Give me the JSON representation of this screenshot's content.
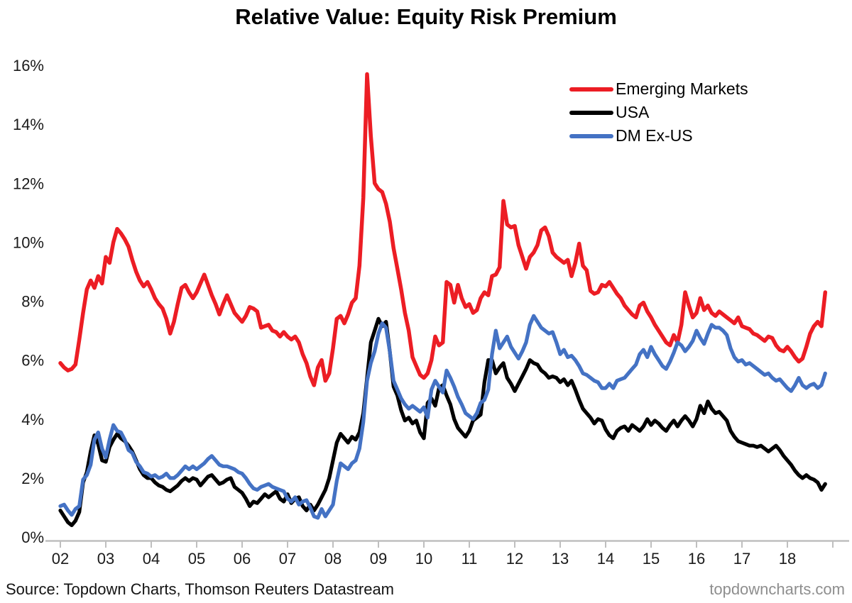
{
  "header": {
    "title": "Relative Value: Equity Risk Premium"
  },
  "footer": {
    "source": "Source: Topdown Charts, Thomson Reuters Datastream",
    "watermark": "topdowncharts.com"
  },
  "colors": {
    "emerging_markets": "#ec1d24",
    "usa": "#000000",
    "dm_ex_us": "#4472c4",
    "axis_line": "#bfbfbf",
    "tick_text": "#1a1a1a"
  },
  "chart_data": {
    "type": "line",
    "title": "Relative Value: Equity Risk Premium",
    "xlabel": "",
    "ylabel": "",
    "x_start_year": 2002,
    "x_step_months": 1,
    "x_end": "2018-11",
    "xlim": [
      2001.66,
      2019.35
    ],
    "ylim": [
      0,
      16
    ],
    "grid": false,
    "legend_position": "top-right-inside",
    "y_ticks": [
      {
        "value": 0,
        "label": "0%"
      },
      {
        "value": 2,
        "label": "2%"
      },
      {
        "value": 4,
        "label": "4%"
      },
      {
        "value": 6,
        "label": "6%"
      },
      {
        "value": 8,
        "label": "8%"
      },
      {
        "value": 10,
        "label": "10%"
      },
      {
        "value": 12,
        "label": "12%"
      },
      {
        "value": 14,
        "label": "14%"
      },
      {
        "value": 16,
        "label": "16%"
      }
    ],
    "x_ticks": [
      {
        "year": 2002,
        "label": "02"
      },
      {
        "year": 2003,
        "label": "03"
      },
      {
        "year": 2004,
        "label": "04"
      },
      {
        "year": 2005,
        "label": "05"
      },
      {
        "year": 2006,
        "label": "06"
      },
      {
        "year": 2007,
        "label": "07"
      },
      {
        "year": 2008,
        "label": "08"
      },
      {
        "year": 2009,
        "label": "09"
      },
      {
        "year": 2010,
        "label": "10"
      },
      {
        "year": 2011,
        "label": "11"
      },
      {
        "year": 2012,
        "label": "12"
      },
      {
        "year": 2013,
        "label": "13"
      },
      {
        "year": 2014,
        "label": "14"
      },
      {
        "year": 2015,
        "label": "15"
      },
      {
        "year": 2016,
        "label": "16"
      },
      {
        "year": 2017,
        "label": "17"
      },
      {
        "year": 2018,
        "label": "18"
      }
    ],
    "series": [
      {
        "name": "Emerging Markets",
        "color": "#ec1d24",
        "stroke_width": 5.5,
        "values": [
          5.9,
          5.75,
          5.65,
          5.7,
          5.85,
          6.7,
          7.6,
          8.4,
          8.7,
          8.45,
          8.85,
          8.6,
          9.5,
          9.3,
          10.0,
          10.45,
          10.3,
          10.1,
          9.85,
          9.4,
          9.0,
          8.7,
          8.5,
          8.65,
          8.4,
          8.1,
          7.9,
          7.75,
          7.4,
          6.9,
          7.3,
          7.9,
          8.45,
          8.55,
          8.3,
          8.1,
          8.3,
          8.6,
          8.9,
          8.55,
          8.2,
          7.9,
          7.55,
          7.9,
          8.2,
          7.9,
          7.6,
          7.45,
          7.3,
          7.5,
          7.8,
          7.75,
          7.65,
          7.1,
          7.15,
          7.2,
          7.0,
          6.95,
          6.8,
          6.95,
          6.8,
          6.7,
          6.8,
          6.6,
          6.2,
          5.9,
          5.45,
          5.15,
          5.75,
          6.0,
          5.3,
          5.55,
          6.4,
          7.4,
          7.5,
          7.25,
          7.55,
          7.95,
          8.1,
          9.2,
          11.5,
          15.7,
          13.6,
          12.0,
          11.8,
          11.7,
          11.3,
          10.7,
          9.8,
          9.1,
          8.4,
          7.6,
          7.0,
          6.1,
          5.8,
          5.5,
          5.4,
          5.55,
          6.0,
          6.8,
          6.5,
          6.6,
          8.65,
          8.55,
          7.95,
          8.55,
          8.1,
          7.8,
          7.9,
          7.6,
          7.7,
          8.1,
          8.3,
          8.2,
          8.85,
          8.9,
          9.15,
          11.4,
          10.6,
          10.5,
          10.55,
          9.9,
          9.5,
          9.1,
          9.5,
          9.65,
          9.9,
          10.4,
          10.5,
          10.2,
          9.65,
          9.5,
          9.4,
          9.3,
          9.4,
          8.85,
          9.3,
          9.95,
          9.2,
          9.05,
          8.35,
          8.25,
          8.3,
          8.55,
          8.5,
          8.65,
          8.45,
          8.25,
          8.1,
          7.85,
          7.7,
          7.55,
          7.45,
          7.85,
          7.95,
          7.65,
          7.45,
          7.2,
          7.0,
          6.8,
          6.6,
          6.5,
          6.85,
          6.6,
          7.2,
          8.3,
          7.85,
          7.45,
          7.6,
          8.1,
          7.7,
          7.85,
          7.6,
          7.5,
          7.65,
          7.55,
          7.45,
          7.35,
          7.25,
          7.45,
          7.15,
          7.1,
          7.05,
          6.9,
          6.85,
          6.75,
          6.65,
          6.8,
          6.75,
          6.5,
          6.35,
          6.3,
          6.45,
          6.3,
          6.1,
          5.95,
          6.05,
          6.45,
          6.9,
          7.15,
          7.3,
          7.15,
          8.3
        ]
      },
      {
        "name": "USA",
        "color": "#000000",
        "stroke_width": 5.2,
        "values": [
          0.9,
          0.7,
          0.5,
          0.4,
          0.55,
          0.85,
          1.85,
          2.2,
          2.9,
          3.45,
          3.15,
          2.6,
          2.55,
          3.05,
          3.3,
          3.5,
          3.35,
          3.25,
          3.1,
          2.9,
          2.6,
          2.3,
          2.1,
          2.0,
          2.0,
          1.85,
          1.75,
          1.7,
          1.6,
          1.55,
          1.65,
          1.75,
          1.9,
          2.0,
          1.9,
          2.0,
          1.95,
          1.75,
          1.9,
          2.05,
          2.1,
          1.95,
          1.8,
          1.85,
          1.95,
          2.0,
          1.7,
          1.6,
          1.5,
          1.3,
          1.05,
          1.2,
          1.15,
          1.3,
          1.45,
          1.35,
          1.45,
          1.55,
          1.3,
          1.2,
          1.45,
          1.15,
          1.3,
          1.35,
          1.05,
          0.9,
          1.1,
          0.9,
          1.1,
          1.35,
          1.6,
          2.0,
          2.6,
          3.2,
          3.5,
          3.35,
          3.2,
          3.4,
          3.3,
          3.55,
          4.2,
          5.4,
          6.6,
          7.0,
          7.4,
          7.15,
          7.3,
          6.3,
          5.1,
          4.8,
          4.3,
          3.95,
          4.05,
          3.85,
          3.95,
          3.55,
          3.35,
          4.55,
          4.7,
          4.45,
          5.05,
          5.15,
          4.8,
          4.5,
          4.0,
          3.7,
          3.55,
          3.4,
          3.6,
          3.95,
          4.05,
          4.15,
          5.25,
          6.0,
          6.0,
          5.55,
          5.75,
          5.9,
          5.4,
          5.2,
          4.95,
          5.2,
          5.45,
          5.7,
          6.0,
          5.9,
          5.85,
          5.65,
          5.55,
          5.4,
          5.45,
          5.4,
          5.25,
          5.35,
          5.15,
          5.3,
          5.0,
          4.65,
          4.35,
          4.2,
          4.05,
          3.85,
          4.0,
          3.95,
          3.65,
          3.45,
          3.35,
          3.6,
          3.7,
          3.75,
          3.6,
          3.8,
          3.7,
          3.6,
          3.75,
          4.0,
          3.8,
          3.95,
          3.85,
          3.7,
          3.6,
          3.8,
          3.95,
          3.75,
          3.95,
          4.1,
          3.95,
          3.75,
          4.0,
          4.45,
          4.2,
          4.6,
          4.35,
          4.2,
          4.25,
          4.1,
          3.95,
          3.6,
          3.4,
          3.25,
          3.2,
          3.15,
          3.1,
          3.1,
          3.05,
          3.1,
          3.0,
          2.9,
          3.0,
          3.1,
          2.95,
          2.75,
          2.6,
          2.45,
          2.25,
          2.1,
          2.0,
          2.1,
          2.0,
          1.95,
          1.85,
          1.6,
          1.8
        ]
      },
      {
        "name": "DM Ex-US",
        "color": "#4472c4",
        "stroke_width": 5.2,
        "values": [
          1.05,
          1.1,
          0.9,
          0.75,
          0.95,
          1.05,
          1.95,
          2.1,
          2.45,
          3.3,
          3.55,
          3.0,
          2.7,
          3.3,
          3.8,
          3.6,
          3.55,
          3.3,
          2.95,
          2.85,
          2.55,
          2.4,
          2.2,
          2.15,
          2.05,
          2.1,
          2.0,
          2.05,
          2.15,
          2.0,
          2.0,
          2.1,
          2.25,
          2.4,
          2.3,
          2.4,
          2.3,
          2.4,
          2.5,
          2.65,
          2.75,
          2.6,
          2.45,
          2.4,
          2.4,
          2.35,
          2.3,
          2.2,
          2.15,
          2.0,
          1.8,
          1.65,
          1.6,
          1.7,
          1.75,
          1.8,
          1.7,
          1.65,
          1.6,
          1.55,
          1.3,
          1.2,
          1.35,
          1.1,
          1.2,
          1.25,
          1.0,
          0.7,
          0.65,
          0.95,
          0.7,
          0.9,
          1.1,
          1.9,
          2.5,
          2.4,
          2.3,
          2.5,
          2.6,
          3.0,
          3.9,
          5.3,
          5.9,
          6.3,
          6.9,
          7.25,
          7.1,
          6.3,
          5.3,
          5.0,
          4.7,
          4.5,
          4.35,
          4.45,
          4.35,
          4.25,
          4.4,
          4.05,
          5.0,
          5.3,
          5.1,
          4.9,
          5.65,
          5.4,
          5.1,
          4.75,
          4.5,
          4.2,
          4.1,
          4.0,
          4.2,
          4.55,
          4.65,
          5.0,
          6.2,
          7.0,
          6.4,
          6.6,
          6.8,
          6.45,
          6.25,
          6.05,
          6.3,
          6.6,
          7.2,
          7.5,
          7.3,
          7.1,
          7.0,
          6.9,
          6.95,
          6.6,
          6.2,
          6.35,
          6.1,
          6.15,
          6.0,
          5.8,
          5.55,
          5.5,
          5.4,
          5.3,
          5.25,
          5.05,
          5.05,
          5.2,
          5.05,
          5.3,
          5.35,
          5.4,
          5.55,
          5.7,
          5.85,
          6.2,
          6.35,
          6.1,
          6.45,
          6.2,
          6.0,
          5.8,
          5.7,
          5.95,
          6.25,
          6.6,
          6.5,
          6.3,
          6.45,
          6.65,
          7.0,
          6.75,
          6.55,
          6.9,
          7.2,
          7.1,
          7.1,
          7.0,
          6.85,
          6.4,
          6.1,
          5.95,
          6.0,
          5.85,
          5.9,
          5.8,
          5.7,
          5.6,
          5.5,
          5.55,
          5.4,
          5.3,
          5.35,
          5.2,
          5.05,
          4.95,
          5.15,
          5.4,
          5.15,
          5.05,
          5.15,
          5.2,
          5.05,
          5.15,
          5.55
        ]
      }
    ]
  }
}
